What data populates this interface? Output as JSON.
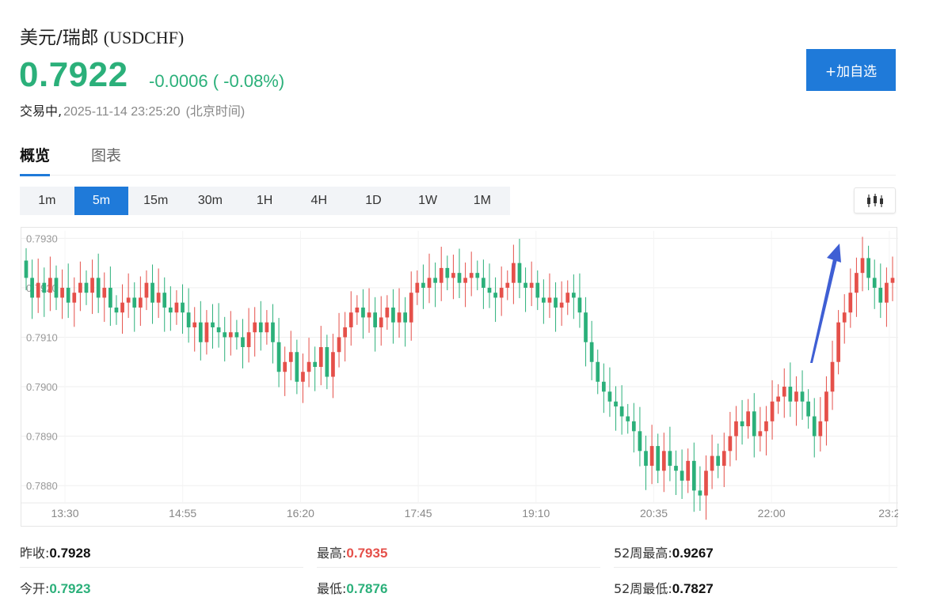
{
  "header": {
    "name": "美元/瑞郎",
    "code": "(USDCHF)",
    "price": "0.7922",
    "change": "-0.0006 ( -0.08%)",
    "status_label": "交易中,",
    "timestamp": "2025-11-14 23:25:20",
    "timezone": "(北京时间)",
    "watch_button": "+加自选"
  },
  "tabs": [
    {
      "label": "概览",
      "active": true
    },
    {
      "label": "图表",
      "active": false
    }
  ],
  "periods": [
    {
      "label": "1m",
      "active": false
    },
    {
      "label": "5m",
      "active": true
    },
    {
      "label": "15m",
      "active": false
    },
    {
      "label": "30m",
      "active": false
    },
    {
      "label": "1H",
      "active": false
    },
    {
      "label": "4H",
      "active": false
    },
    {
      "label": "1D",
      "active": false
    },
    {
      "label": "1W",
      "active": false
    },
    {
      "label": "1M",
      "active": false
    }
  ],
  "candle_toggle_icon": "candlestick-icon",
  "colors": {
    "up": "#e5504a",
    "down": "#2bb07a",
    "accent": "#1f7ad9",
    "arrow": "#3f5fd4"
  },
  "chart_data": {
    "type": "candlestick",
    "ylim": [
      0.78765,
      0.79315
    ],
    "y_ticks": [
      "0.7930",
      "0.7920",
      "0.7910",
      "0.7900",
      "0.7890",
      "0.7880"
    ],
    "x_ticks": [
      "13:30",
      "14:55",
      "16:20",
      "17:45",
      "19:10",
      "20:35",
      "22:00",
      "23:2"
    ],
    "closes": [
      0.7922,
      0.7918,
      0.7921,
      0.7919,
      0.7922,
      0.7918,
      0.792,
      0.7917,
      0.7919,
      0.7921,
      0.7919,
      0.7922,
      0.7918,
      0.792,
      0.7916,
      0.7915,
      0.7917,
      0.7918,
      0.7916,
      0.7918,
      0.7921,
      0.7917,
      0.7919,
      0.7916,
      0.7915,
      0.7917,
      0.7915,
      0.7912,
      0.7913,
      0.7909,
      0.7913,
      0.7912,
      0.7911,
      0.791,
      0.7911,
      0.791,
      0.7908,
      0.7911,
      0.7913,
      0.7911,
      0.7913,
      0.7909,
      0.7903,
      0.7905,
      0.7907,
      0.7901,
      0.7903,
      0.7905,
      0.7904,
      0.7908,
      0.7902,
      0.7907,
      0.791,
      0.7912,
      0.7915,
      0.7916,
      0.7914,
      0.7915,
      0.7912,
      0.7914,
      0.7916,
      0.7913,
      0.7915,
      0.7913,
      0.7919,
      0.7921,
      0.792,
      0.7922,
      0.7921,
      0.7924,
      0.7922,
      0.7923,
      0.7921,
      0.7922,
      0.7923,
      0.7922,
      0.792,
      0.7919,
      0.7918,
      0.792,
      0.7921,
      0.7925,
      0.7921,
      0.792,
      0.7921,
      0.7918,
      0.7917,
      0.7918,
      0.7916,
      0.7917,
      0.7919,
      0.7918,
      0.7915,
      0.7909,
      0.7905,
      0.7901,
      0.7899,
      0.7897,
      0.7896,
      0.7894,
      0.7893,
      0.7891,
      0.7887,
      0.7884,
      0.7888,
      0.7883,
      0.7887,
      0.7884,
      0.7883,
      0.7881,
      0.7885,
      0.7879,
      0.7878,
      0.7883,
      0.7886,
      0.7884,
      0.7887,
      0.789,
      0.7893,
      0.7892,
      0.7895,
      0.789,
      0.7891,
      0.7893,
      0.7897,
      0.7898,
      0.79,
      0.7897,
      0.7899,
      0.7897,
      0.7894,
      0.789,
      0.7893,
      0.7899,
      0.7905,
      0.7913,
      0.7915,
      0.7919,
      0.7923,
      0.7926,
      0.7922,
      0.792,
      0.7917,
      0.7921,
      0.7922
    ],
    "closing_trend_arrow": true
  },
  "stats": [
    {
      "label": "昨收:",
      "value": "0.7928",
      "tone": "dark"
    },
    {
      "label": "最高:",
      "value": "0.7935",
      "tone": "red"
    },
    {
      "label": "52周最高:",
      "value": "0.9267",
      "tone": "dark"
    },
    {
      "label": "今开:",
      "value": "0.7923",
      "tone": "green"
    },
    {
      "label": "最低:",
      "value": "0.7876",
      "tone": "green"
    },
    {
      "label": "52周最低:",
      "value": "0.7827",
      "tone": "dark"
    }
  ]
}
